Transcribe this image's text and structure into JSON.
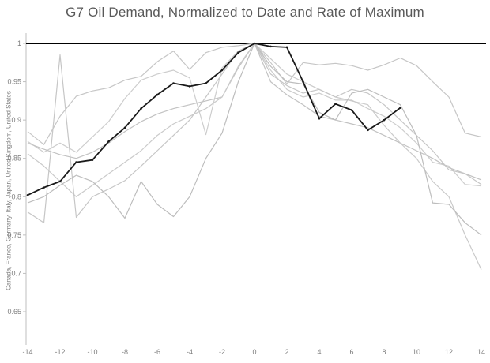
{
  "window": {
    "background": "#ffffff"
  },
  "chart_data": {
    "type": "line",
    "title": "G7 Oil Demand, Normalized to Date and Rate of Maximum",
    "ylabel": "Canada, France, Germany, Italy, Japan, United Kingdom, United States",
    "xlabel": "",
    "x": [
      -14,
      -13,
      -12,
      -11,
      -10,
      -9,
      -8,
      -7,
      -6,
      -5,
      -4,
      -3,
      -2,
      -1,
      0,
      1,
      2,
      3,
      4,
      5,
      6,
      7,
      8,
      9,
      10,
      11,
      12,
      13,
      14
    ],
    "x_tick_labels": [
      "-14",
      "-12",
      "-10",
      "-8",
      "-6",
      "-4",
      "-2",
      "0",
      "2",
      "4",
      "6",
      "8",
      "10",
      "12",
      "14"
    ],
    "x_ticks": [
      -14,
      -12,
      -10,
      -8,
      -6,
      -4,
      -2,
      0,
      2,
      4,
      6,
      8,
      10,
      12,
      14
    ],
    "y_ticks": [
      1,
      0.95,
      0.9,
      0.85,
      0.8,
      0.75,
      0.7,
      0.65
    ],
    "y_tick_labels": [
      "1",
      "0.95",
      "0.9",
      "0.85",
      "0.8",
      "0.75",
      "0.7",
      "0.65"
    ],
    "ylim": [
      0.63,
      1.005
    ],
    "xlim": [
      -14,
      14
    ],
    "grid": false,
    "legend": "none",
    "reference_line": {
      "value": 1.0,
      "color": "#000000",
      "width": 2
    },
    "series": [
      {
        "name": "Canada",
        "color": "#c6c6c6",
        "width": 1.2,
        "values": [
          0.885,
          0.868,
          0.905,
          0.931,
          0.938,
          0.942,
          0.952,
          0.957,
          0.976,
          0.99,
          0.966,
          0.988,
          0.995,
          0.997,
          1.0,
          0.975,
          0.947,
          0.975,
          0.972,
          0.974,
          0.971,
          0.965,
          0.972,
          0.981,
          0.971,
          0.95,
          0.93,
          0.883,
          0.878
        ]
      },
      {
        "name": "France",
        "color": "#cdcdcd",
        "width": 1.2,
        "values": [
          0.872,
          0.858,
          0.87,
          0.858,
          0.878,
          0.898,
          0.928,
          0.952,
          0.96,
          0.965,
          0.955,
          0.881,
          0.968,
          0.99,
          1.0,
          0.965,
          0.94,
          0.93,
          0.935,
          0.926,
          0.926,
          0.915,
          0.905,
          0.89,
          0.87,
          0.845,
          0.84,
          0.816,
          0.814
        ]
      },
      {
        "name": "Germany",
        "color": "#c2c2c2",
        "width": 1.2,
        "values": [
          0.87,
          0.862,
          0.855,
          0.85,
          0.858,
          0.87,
          0.885,
          0.898,
          0.908,
          0.915,
          0.92,
          0.925,
          0.93,
          0.968,
          1.0,
          0.95,
          0.933,
          0.92,
          0.905,
          0.9,
          0.895,
          0.89,
          0.88,
          0.87,
          0.86,
          0.85,
          0.838,
          0.83,
          0.822
        ]
      },
      {
        "name": "Italy",
        "color": "#cacaca",
        "width": 1.2,
        "values": [
          0.856,
          0.84,
          0.82,
          0.8,
          0.815,
          0.83,
          0.845,
          0.86,
          0.88,
          0.895,
          0.905,
          0.915,
          0.93,
          0.97,
          1.0,
          0.98,
          0.96,
          0.95,
          0.94,
          0.93,
          0.925,
          0.92,
          0.893,
          0.87,
          0.85,
          0.82,
          0.8,
          0.75,
          0.705
        ]
      },
      {
        "name": "Japan",
        "color": "#c6c6c6",
        "width": 1.2,
        "values": [
          0.78,
          0.766,
          0.985,
          0.773,
          0.8,
          0.81,
          0.821,
          0.84,
          0.86,
          0.88,
          0.9,
          0.93,
          0.96,
          0.99,
          1.0,
          0.96,
          0.945,
          0.935,
          0.94,
          0.93,
          0.94,
          0.935,
          0.92,
          0.9,
          0.88,
          0.86,
          0.835,
          0.83,
          0.816
        ]
      },
      {
        "name": "United Kingdom",
        "color": "#bdbdbd",
        "width": 1.2,
        "values": [
          0.792,
          0.8,
          0.815,
          0.828,
          0.82,
          0.8,
          0.772,
          0.82,
          0.79,
          0.774,
          0.8,
          0.85,
          0.883,
          0.95,
          1.0,
          0.97,
          0.95,
          0.947,
          0.91,
          0.9,
          0.935,
          0.94,
          0.93,
          0.92,
          0.88,
          0.792,
          0.79,
          0.766,
          0.75
        ]
      },
      {
        "name": "United States",
        "color": "#1a1a1a",
        "width": 1.8,
        "markers": true,
        "values": [
          0.802,
          0.812,
          0.82,
          0.845,
          0.848,
          0.872,
          0.89,
          0.915,
          0.933,
          0.948,
          0.944,
          0.948,
          0.965,
          0.988,
          1.0,
          0.996,
          0.995,
          0.95,
          0.902,
          0.921,
          0.913,
          0.887,
          0.9,
          0.916,
          null,
          null,
          null,
          null,
          null
        ]
      }
    ]
  }
}
